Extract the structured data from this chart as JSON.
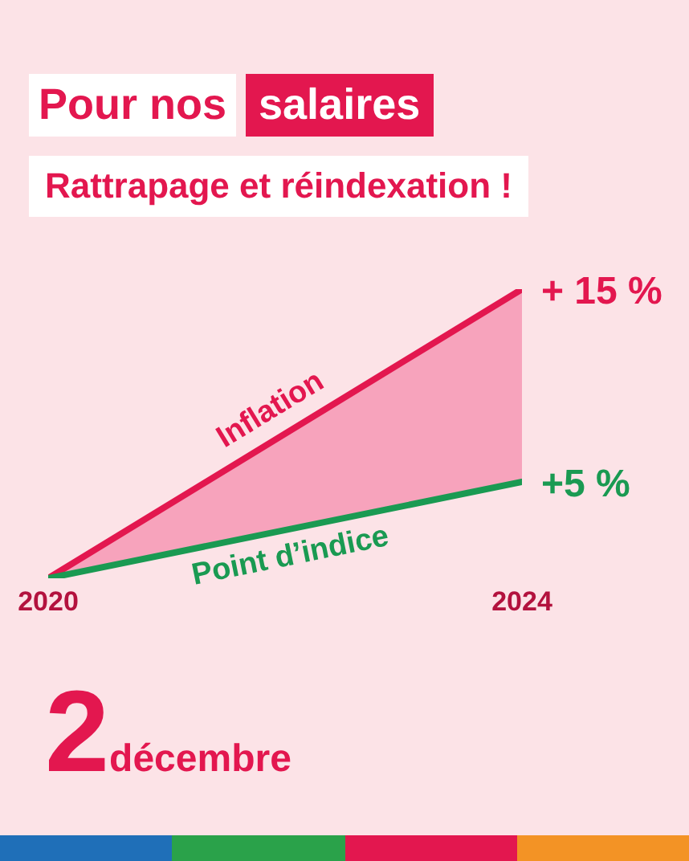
{
  "chart_data": {
    "type": "line",
    "title": "Pour nos salaires",
    "subtitle": "Rattrapage et réindexation !",
    "x": [
      2020,
      2024
    ],
    "xlim": [
      2020,
      2024
    ],
    "xticks": [
      2020,
      2024
    ],
    "series": [
      {
        "name": "Inflation",
        "color": "#e3174f",
        "values": [
          0,
          15
        ],
        "value_labels": [
          null,
          "+ 15 %"
        ],
        "lower": [
          0,
          5
        ],
        "upper": [
          0,
          15
        ]
      },
      {
        "name": "Point d’indice",
        "color": "#1a9a52",
        "values": [
          0,
          5
        ],
        "value_labels": [
          null,
          "+5 %"
        ]
      }
    ],
    "annotations": [
      "2décembre"
    ],
    "marker": "none",
    "line_style": "solid"
  }
}
